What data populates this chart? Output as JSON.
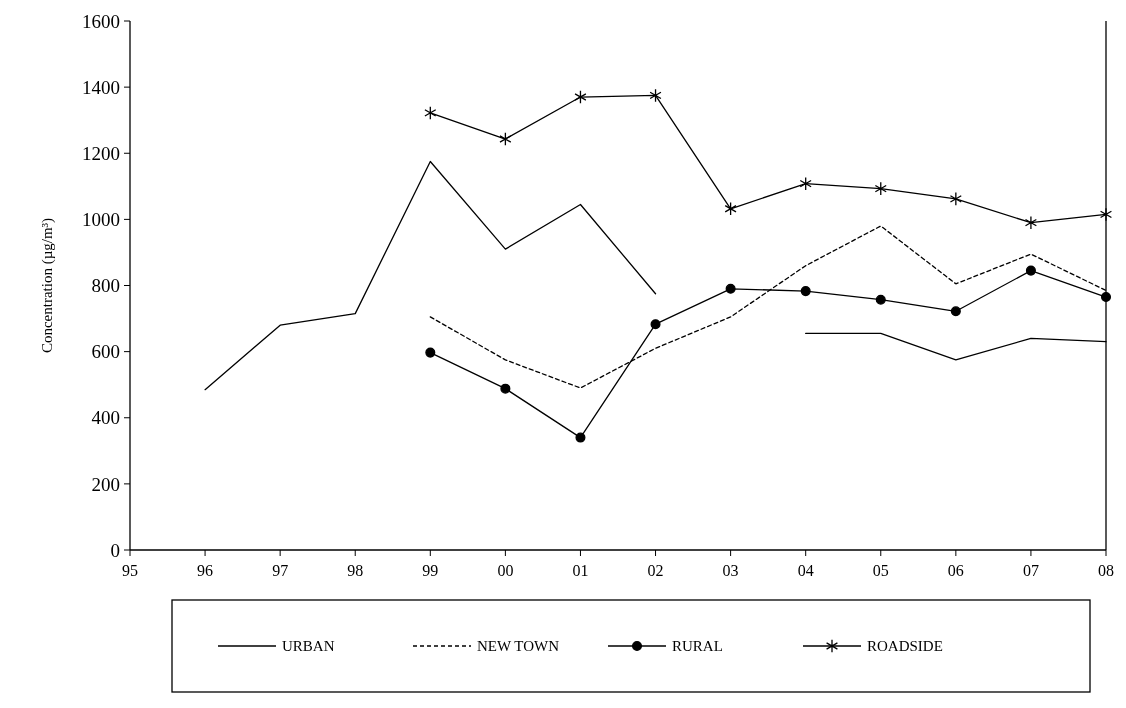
{
  "chart_data": {
    "type": "line",
    "ylabel": "Concentration (µg/m³)",
    "categories": [
      "95",
      "96",
      "97",
      "98",
      "99",
      "00",
      "01",
      "02",
      "03",
      "04",
      "05",
      "06",
      "07",
      "08"
    ],
    "ylim": [
      0,
      1600
    ],
    "yticks": [
      0,
      200,
      400,
      600,
      800,
      1000,
      1200,
      1400,
      1600
    ],
    "grid": false,
    "legend": "bottom",
    "series": [
      {
        "name": "URBAN",
        "color": "#000000",
        "marker": "none",
        "line_style": "solid",
        "values": [
          null,
          485,
          680,
          715,
          1175,
          910,
          1045,
          775,
          null,
          655,
          655,
          575,
          640,
          630
        ]
      },
      {
        "name": "NEW TOWN",
        "color": "#000000",
        "marker": "none",
        "line_style": "dashed",
        "values": [
          null,
          null,
          null,
          null,
          705,
          575,
          490,
          610,
          705,
          860,
          980,
          805,
          895,
          785
        ]
      },
      {
        "name": "RURAL",
        "color": "#000000",
        "marker": "circle",
        "line_style": "solid",
        "values": [
          null,
          null,
          null,
          null,
          597,
          488,
          340,
          683,
          790,
          783,
          757,
          722,
          845,
          765
        ]
      },
      {
        "name": "ROADSIDE",
        "color": "#000000",
        "marker": "cross",
        "line_style": "solid",
        "values": [
          null,
          null,
          null,
          null,
          1322,
          1243,
          1370,
          1375,
          1032,
          1108,
          1093,
          1062,
          990,
          1015
        ]
      }
    ]
  }
}
